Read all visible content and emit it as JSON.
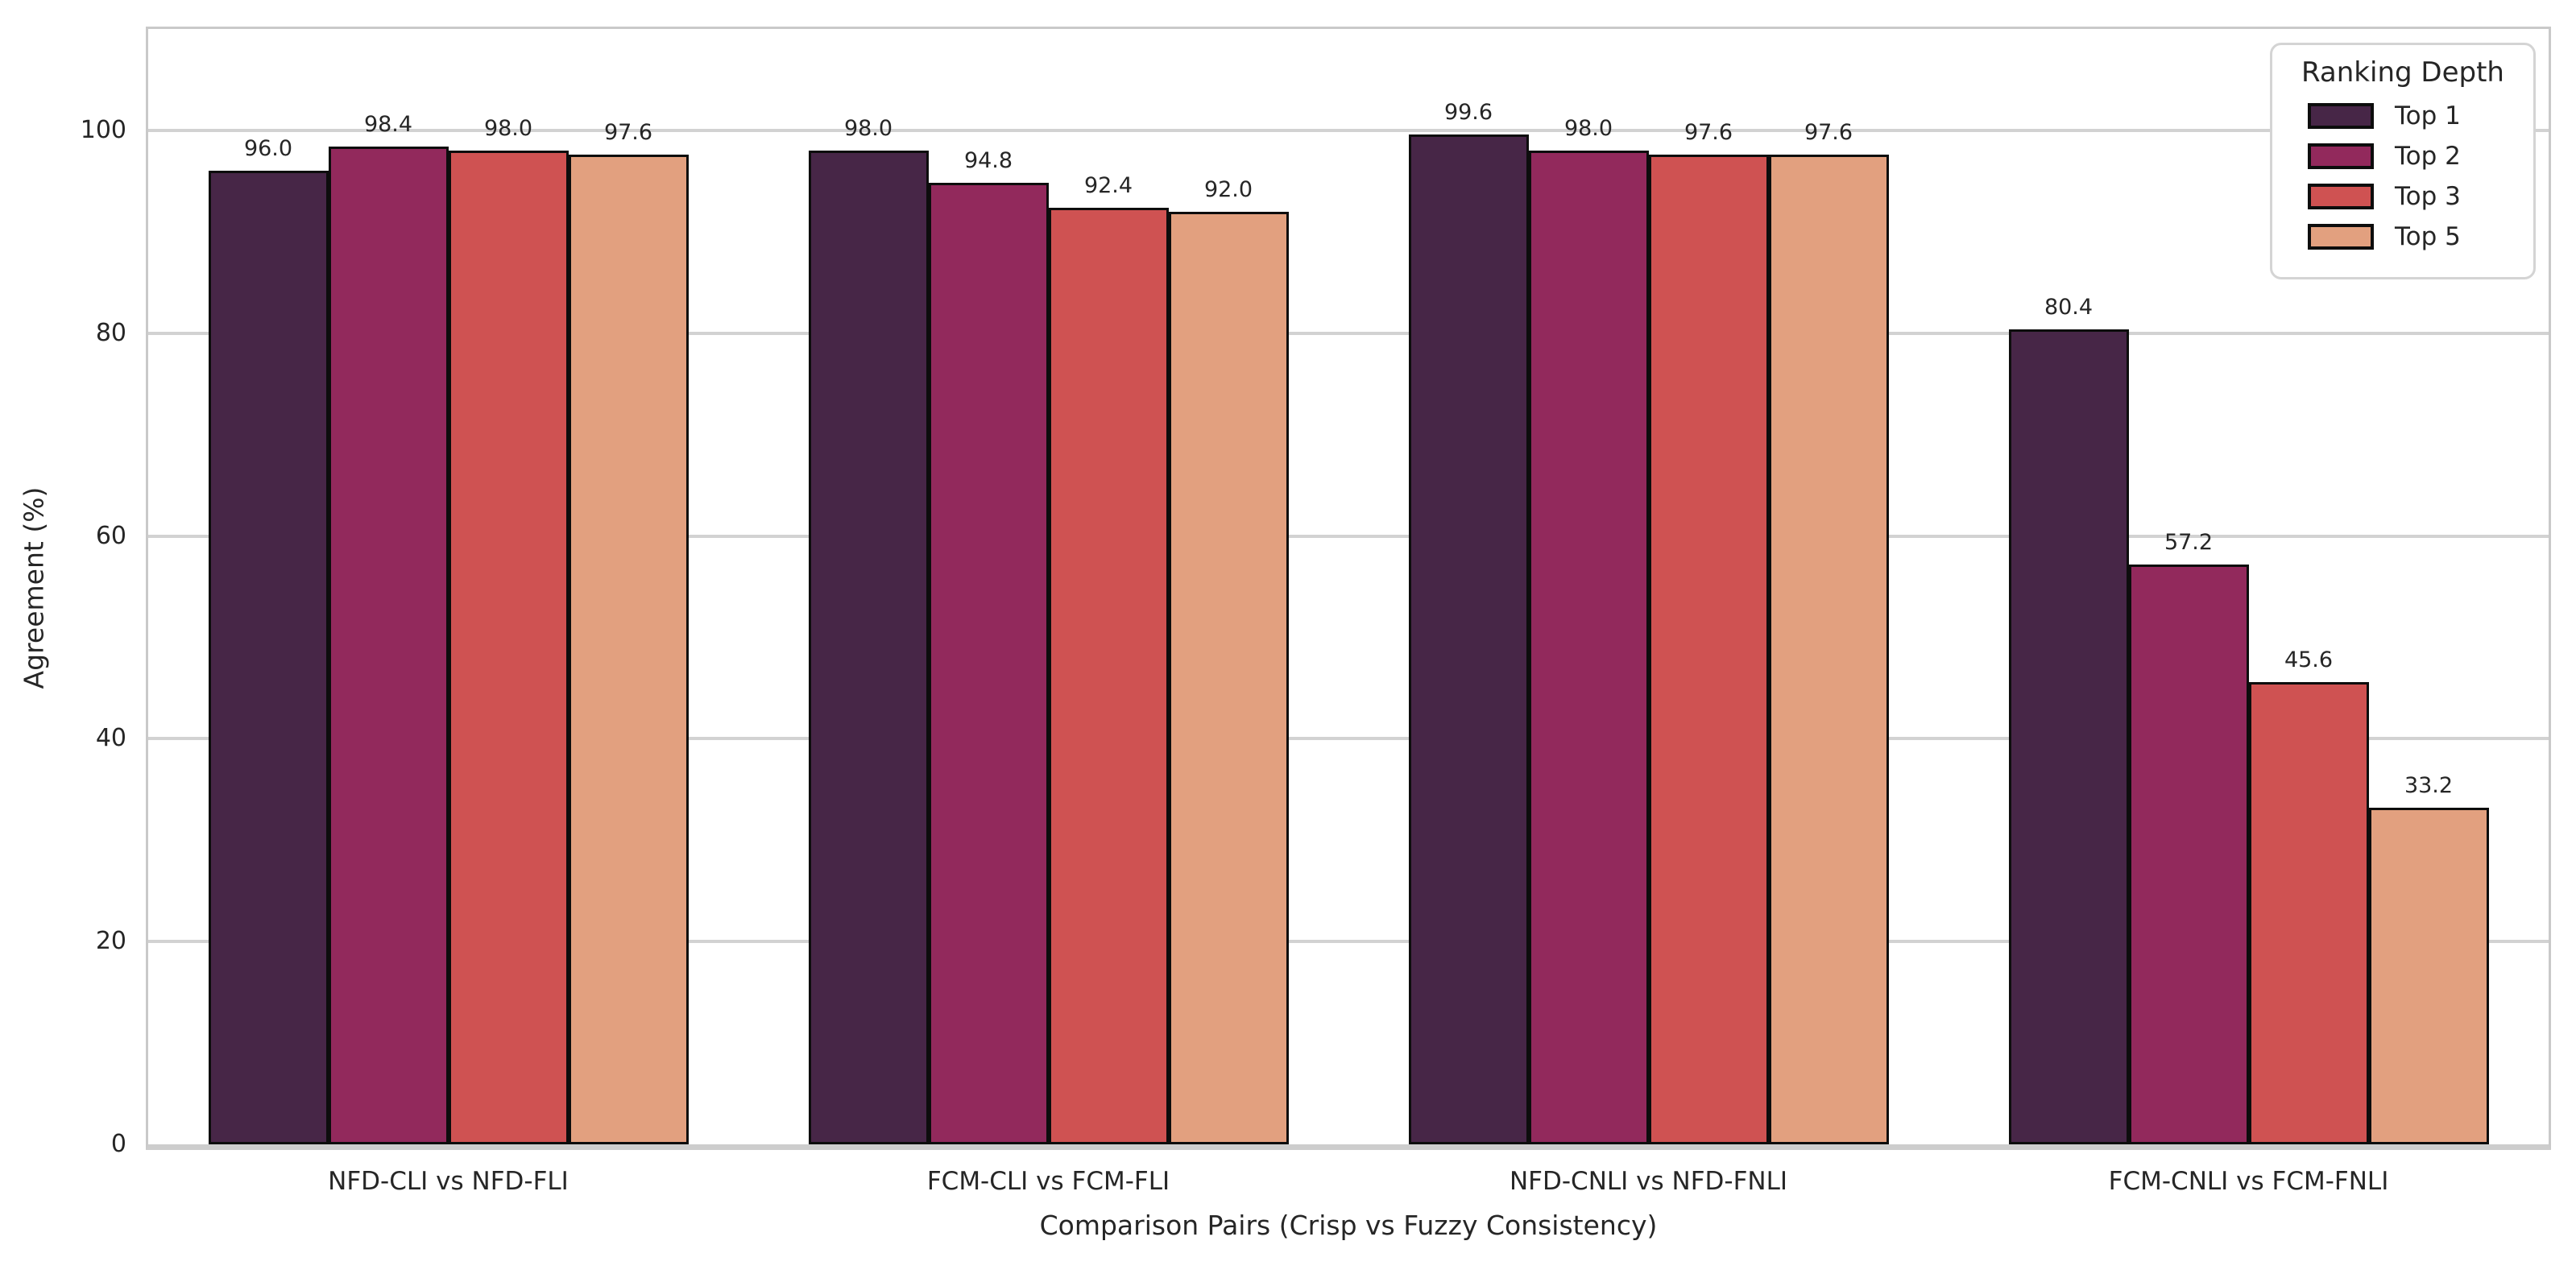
{
  "chart_data": {
    "type": "bar",
    "title": "",
    "xlabel": "Comparison Pairs (Crisp vs Fuzzy Consistency)",
    "ylabel": "Agreement (%)",
    "categories": [
      "NFD-CLI vs NFD-FLI",
      "FCM-CLI vs FCM-FLI",
      "NFD-CNLI vs NFD-FNLI",
      "FCM-CNLI vs FCM-FNLI"
    ],
    "series": [
      {
        "name": "Top 1",
        "color": "#472647",
        "values": [
          96.0,
          98.0,
          99.6,
          80.4
        ]
      },
      {
        "name": "Top 2",
        "color": "#92295c",
        "values": [
          98.4,
          94.8,
          98.0,
          57.2
        ]
      },
      {
        "name": "Top 3",
        "color": "#cf5252",
        "values": [
          98.0,
          92.4,
          97.6,
          45.6
        ]
      },
      {
        "name": "Top 5",
        "color": "#e2a07f",
        "values": [
          97.6,
          92.0,
          97.6,
          33.2
        ]
      }
    ],
    "bar_value_labels": [
      [
        "96.0",
        "98.0",
        "99.6",
        "80.4"
      ],
      [
        "98.4",
        "94.8",
        "98.0",
        "57.2"
      ],
      [
        "98.0",
        "92.4",
        "97.6",
        "45.6"
      ],
      [
        "97.6",
        "92.0",
        "97.6",
        "33.2"
      ]
    ],
    "yticks": [
      "0",
      "20",
      "40",
      "60",
      "80",
      "100"
    ],
    "ylim": [
      0,
      110
    ],
    "grid": "horizontal",
    "bar_edge_color": "#0d0d0d",
    "legend": {
      "title": "Ranking Depth",
      "position": "upper right",
      "entries": [
        "Top 1",
        "Top 2",
        "Top 3",
        "Top 5"
      ]
    }
  }
}
